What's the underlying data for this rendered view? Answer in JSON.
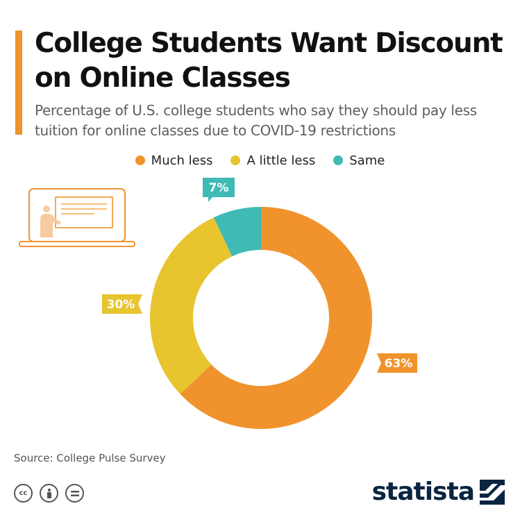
{
  "title": "College Students Want Discount on Online Classes",
  "subtitle": "Percentage of U.S. college students who say they should pay less tuition for online classes due to COVID-19 restrictions",
  "source": "Source: College Pulse Survey",
  "brand": "statista",
  "license_icons": [
    "creative-commons-icon",
    "attribution-icon",
    "no-derivatives-icon"
  ],
  "colors": {
    "accent": "#f0932c",
    "much_less": "#f0932c",
    "a_little_less": "#e8c42f",
    "same": "#3fbab5",
    "brand": "#0a2540"
  },
  "chart_data": {
    "type": "pie",
    "donut": true,
    "labels": [
      "Much less",
      "A little less",
      "Same"
    ],
    "values": [
      63,
      30,
      7
    ],
    "unit": "%",
    "data_labels": [
      "63%",
      "30%",
      "7%"
    ],
    "colors": [
      "#f0932c",
      "#e8c42f",
      "#3fbab5"
    ],
    "legend_placement": "top"
  }
}
